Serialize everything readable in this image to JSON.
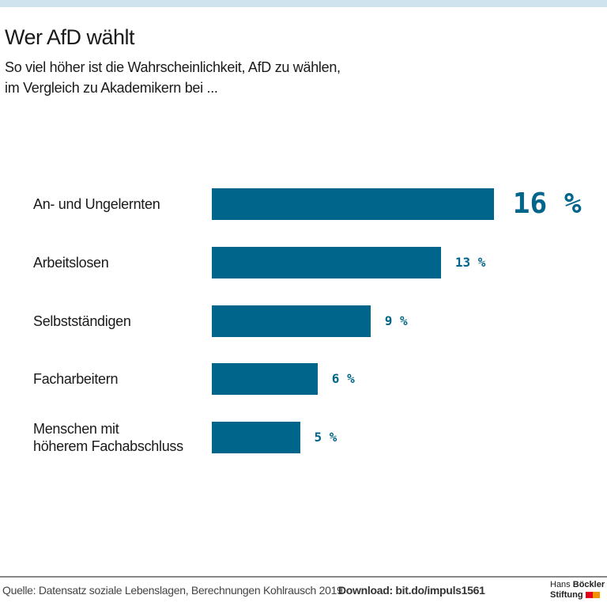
{
  "title": "Wer AfD wählt",
  "subtitle_line1": "So viel höher ist die Wahrscheinlichkeit, AfD zu wählen,",
  "subtitle_line2": "im Vergleich zu Akademikern bei ...",
  "chart_data": {
    "type": "bar",
    "orientation": "horizontal",
    "categories": [
      "An- und Ungelernten",
      "Arbeitslosen",
      "Selbstständigen",
      "Facharbeitern",
      "Menschen mit höherem Fachabschluss"
    ],
    "category_lines": [
      [
        "An- und Ungelernten"
      ],
      [
        "Arbeitslosen"
      ],
      [
        "Selbstständigen"
      ],
      [
        "Facharbeitern"
      ],
      [
        "Menschen mit",
        "höherem Fachabschluss"
      ]
    ],
    "values": [
      16,
      13,
      9,
      6,
      5
    ],
    "value_labels": [
      "16 %",
      "13 %",
      "9 %",
      "6 %",
      "5 %"
    ],
    "unit": "%",
    "grid": false,
    "bar_color": "#00658a",
    "label_color": "#00658a"
  },
  "footer": {
    "source": "Quelle: Datensatz soziale Lebenslagen, Berechnungen Kohlrausch 2019",
    "download": "Download: bit.do/impuls1561",
    "logo_line1_a": "Hans",
    "logo_line1_b": "Böckler",
    "logo_line2": "Stiftung",
    "logo_colors": [
      "#e3001b",
      "#f39200"
    ]
  },
  "colors": {
    "top_band": "#cfe3ee"
  }
}
